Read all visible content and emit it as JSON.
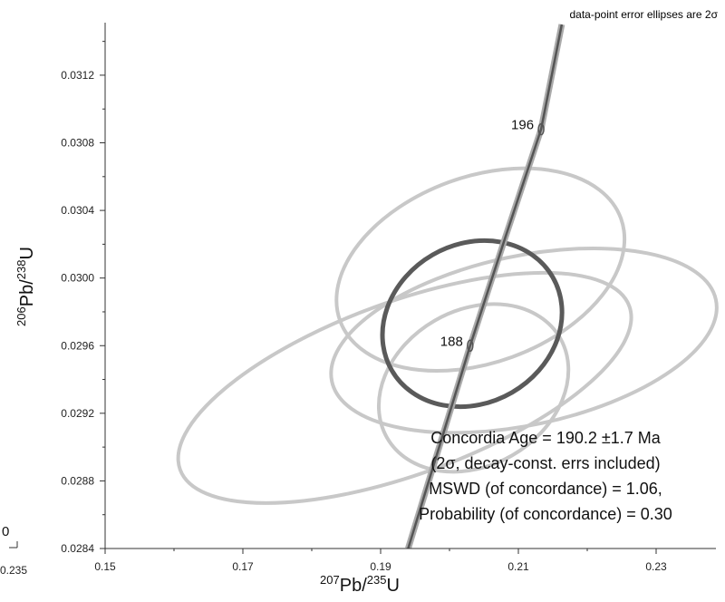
{
  "chart_data": {
    "type": "scatter",
    "subtype": "concordia-diagram",
    "title": "",
    "note": "data-point error ellipses are 2σ",
    "xlabel": {
      "sup1": "207",
      "base1": "Pb/",
      "sup2": "235",
      "base2": "U"
    },
    "ylabel": {
      "sup1": "206",
      "base1": "Pb/",
      "sup2": "238",
      "base2": "U"
    },
    "xlim": [
      0.15,
      0.24
    ],
    "ylim": [
      0.0284,
      0.0315
    ],
    "x_ticks": [
      "0.15",
      "0.17",
      "0.19",
      "0.21",
      "0.23"
    ],
    "y_ticks": [
      "0.0284",
      "0.0288",
      "0.0292",
      "0.0296",
      "0.0300",
      "0.0304",
      "0.0308",
      "0.0312"
    ],
    "x_tick_values": [
      0.15,
      0.17,
      0.19,
      0.21,
      0.23
    ],
    "y_tick_values": [
      0.0284,
      0.0288,
      0.0292,
      0.0296,
      0.03,
      0.0304,
      0.0308,
      0.0312
    ],
    "clipped_left_labels": {
      "zero": "0",
      "small": "0.235"
    },
    "concordia_curve": {
      "points": [
        {
          "x": 0.194,
          "y": 0.0284
        },
        {
          "x": 0.203,
          "y": 0.0296
        },
        {
          "x": 0.2081,
          "y": 0.03024
        },
        {
          "x": 0.2133,
          "y": 0.03088
        },
        {
          "x": 0.2163,
          "y": 0.0315
        }
      ],
      "age_labels": [
        {
          "text": "188",
          "x": 0.203,
          "y": 0.0296
        },
        {
          "text": "196",
          "x": 0.2133,
          "y": 0.03088
        }
      ]
    },
    "series": [
      {
        "name": "data-point error ellipses",
        "color": "#c8c8c8",
        "ellipses": [
          {
            "cx": 0.1935,
            "cy": 0.02935,
            "rx": 0.0347,
            "ry": 0.00051,
            "angle_deg": -20
          },
          {
            "cx": 0.2045,
            "cy": 0.03005,
            "rx": 0.0217,
            "ry": 0.00055,
            "angle_deg": -20
          },
          {
            "cx": 0.2108,
            "cy": 0.02963,
            "rx": 0.0285,
            "ry": 0.0005,
            "angle_deg": -12
          },
          {
            "cx": 0.2035,
            "cy": 0.02935,
            "rx": 0.0145,
            "ry": 0.00046,
            "angle_deg": -30
          }
        ]
      },
      {
        "name": "concordia age ellipse",
        "color": "#5a5a5a",
        "ellipses": [
          {
            "cx": 0.2033,
            "cy": 0.02973,
            "rx": 0.0135,
            "ry": 0.00047,
            "angle_deg": -30
          }
        ]
      }
    ],
    "result_annotation": [
      "Concordia Age = 190.2 ±1.7 Ma",
      "(2σ, decay-const. errs included)",
      "MSWD (of concordance) = 1.06,",
      "Probability (of concordance) = 0.30"
    ],
    "colors": {
      "axis": "#333333",
      "curve_dark": "#555555",
      "curve_light": "#aaaaaa"
    }
  }
}
